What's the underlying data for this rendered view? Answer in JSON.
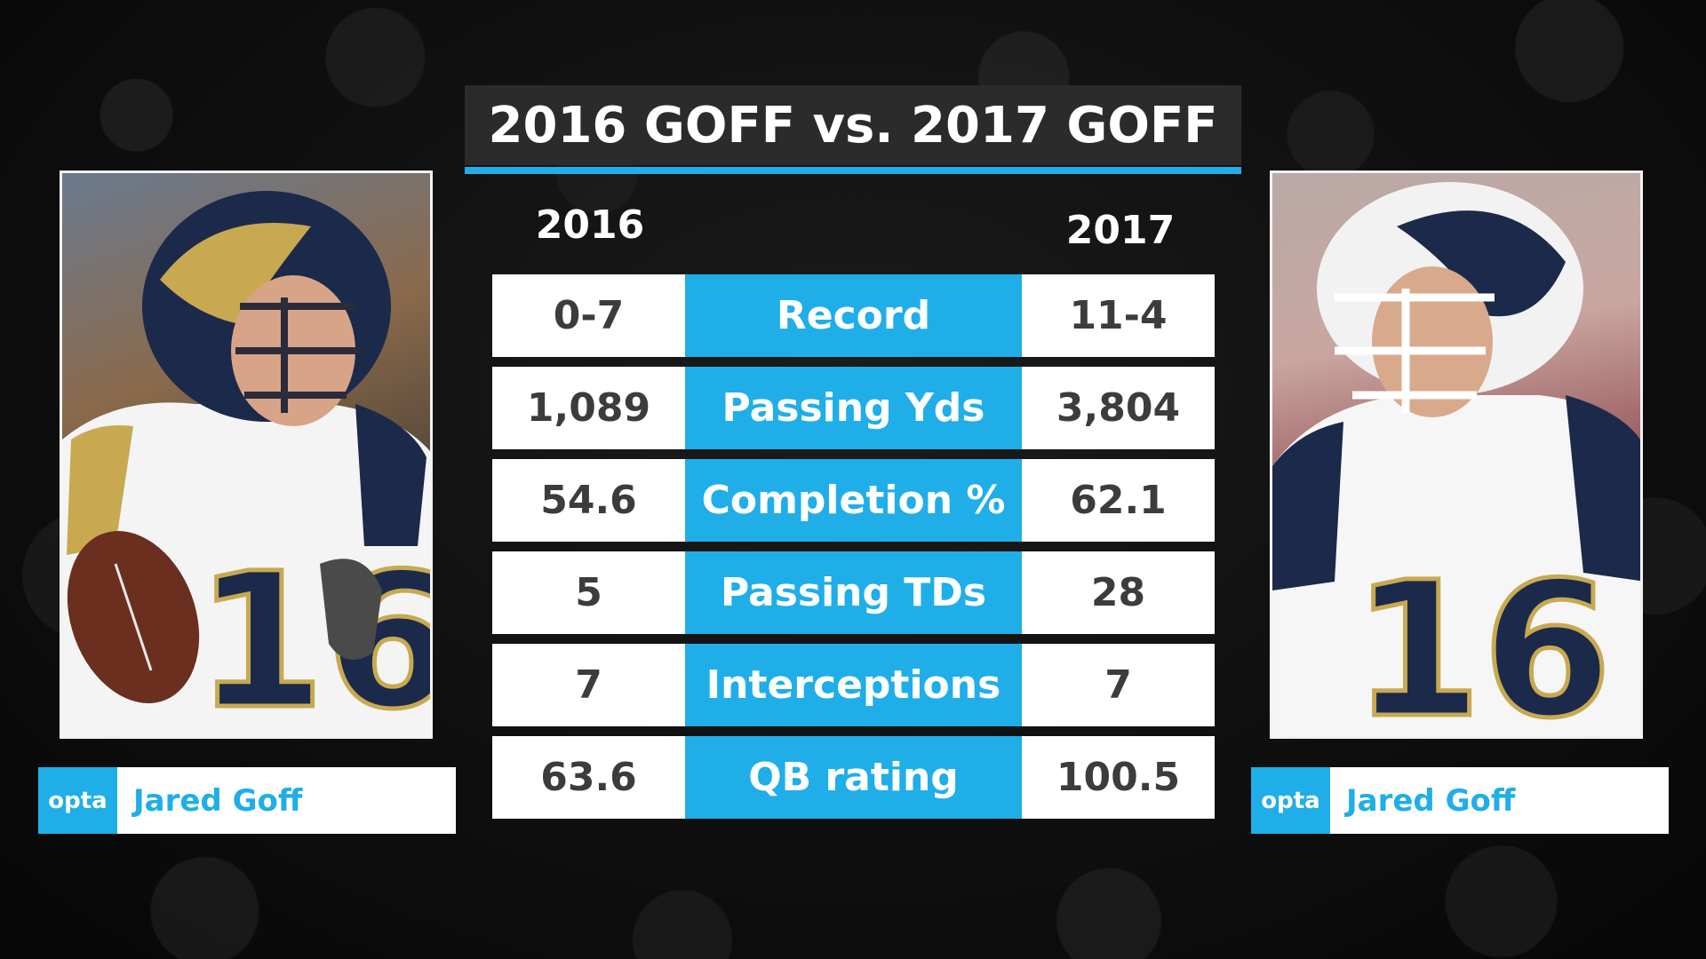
{
  "title": "2016 GOFF vs. 2017 GOFF",
  "years": {
    "left": "2016",
    "right": "2017"
  },
  "stats": [
    {
      "label": "Record",
      "left": "0-7",
      "right": "11-4"
    },
    {
      "label": "Passing Yds",
      "left": "1,089",
      "right": "3,804"
    },
    {
      "label": "Completion %",
      "left": "54.6",
      "right": "62.1"
    },
    {
      "label": "Passing TDs",
      "left": "5",
      "right": "28"
    },
    {
      "label": "Interceptions",
      "left": "7",
      "right": "7"
    },
    {
      "label": "QB rating",
      "left": "63.6",
      "right": "100.5"
    }
  ],
  "players": {
    "left": {
      "brand": "opta",
      "name": "Jared Goff",
      "jersey_number": "16"
    },
    "right": {
      "brand": "opta",
      "name": "Jared Goff",
      "jersey_number": "16"
    }
  },
  "colors": {
    "accent": "#1faee8",
    "title_bg": "#2b2b2b",
    "value_text": "#3c3c3c"
  }
}
